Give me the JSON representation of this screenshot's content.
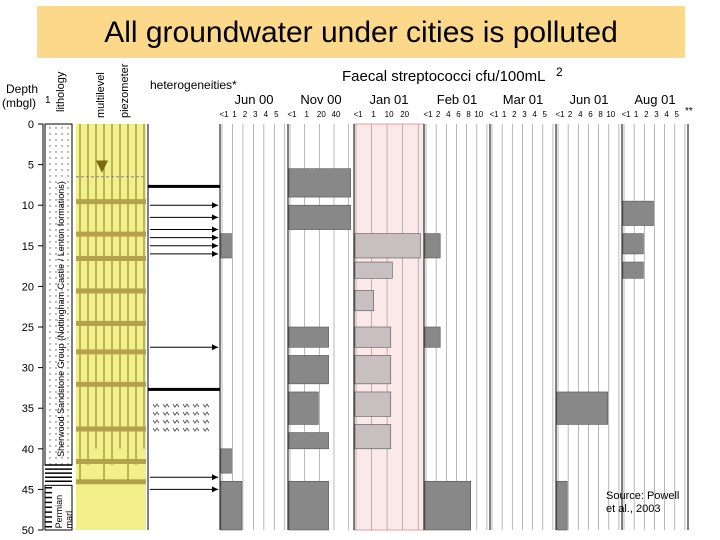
{
  "title": "All groundwater under cities is polluted",
  "source": [
    "Source: Powell",
    "et al., 2003"
  ],
  "figure": {
    "depth_label": [
      "Depth",
      "(mbgl)"
    ],
    "depth_sup": "1",
    "lithology_label": "lithology",
    "piezometer_label": [
      "multilevel",
      "piezometer"
    ],
    "heterogeneities_label": "heterogeneities*",
    "measure_label": "Faecal streptococci cfu/100mL",
    "measure_sup": "2",
    "double_star": "**",
    "sandstone_label": "Sherwood Sandstone Group (Nottingham Castle / Lenton formations)",
    "marl_label": "Permian marl",
    "depth_ticks": [
      "0",
      "5",
      "10",
      "15",
      "20",
      "25",
      "30",
      "35",
      "40",
      "45",
      "50"
    ]
  },
  "colors": {
    "title_bg": "#fcd98a",
    "piezometer_bg": "#f3ef8a",
    "bar": "#888888",
    "highlight": "#fbe9e9",
    "highlight_border": "#e8a0a0"
  },
  "chart_data": {
    "type": "bar",
    "orientation": "horizontal",
    "y_axis": "Depth (mbgl)",
    "ylim": [
      0,
      50
    ],
    "unit": "cfu/100mL",
    "panels": [
      {
        "name": "Jun 00",
        "ticks": [
          "<1",
          "1",
          "2",
          "3",
          "4",
          "5"
        ],
        "bars": [
          {
            "depth": [
              13.5,
              16.5
            ],
            "value": "<1"
          },
          {
            "depth": [
              40,
              43
            ],
            "value": "<1"
          },
          {
            "depth": [
              44,
              50
            ],
            "value": 1
          }
        ]
      },
      {
        "name": "Nov 00",
        "ticks": [
          "<1",
          "1",
          "20",
          "40"
        ],
        "bars": [
          {
            "depth": [
              5.5,
              9
            ],
            "value": 44
          },
          {
            "depth": [
              10,
              13
            ],
            "value": 44
          },
          {
            "depth": [
              25,
              27.5
            ],
            "value": 14
          },
          {
            "depth": [
              28.5,
              32
            ],
            "value": 14
          },
          {
            "depth": [
              33,
              37
            ],
            "value": 1
          },
          {
            "depth": [
              38,
              40
            ],
            "value": 14
          },
          {
            "depth": [
              44,
              50
            ],
            "value": 14
          }
        ]
      },
      {
        "name": "Jan 01",
        "highlight": true,
        "ticks": [
          "<1",
          "1",
          "10",
          "20"
        ],
        "bars": [
          {
            "depth": [
              13.5,
              16.5
            ],
            "value": 22
          },
          {
            "depth": [
              17,
              19
            ],
            "value": 4
          },
          {
            "depth": [
              20.5,
              23
            ],
            "value": "1"
          },
          {
            "depth": [
              25,
              27.5
            ],
            "value": 3
          },
          {
            "depth": [
              28.5,
              32
            ],
            "value": 3
          },
          {
            "depth": [
              33,
              36
            ],
            "value": 3
          },
          {
            "depth": [
              37,
              40
            ],
            "value": 3
          }
        ]
      },
      {
        "name": "Feb 01",
        "ticks": [
          "<1",
          "2",
          "4",
          "6",
          "8",
          "10"
        ],
        "bars": [
          {
            "depth": [
              13.5,
              16.5
            ],
            "value": 1
          },
          {
            "depth": [
              25,
              27.5
            ],
            "value": 1
          },
          {
            "depth": [
              44,
              50
            ],
            "value": 7
          }
        ]
      },
      {
        "name": "Mar 01",
        "ticks": [
          "<1",
          "1",
          "2",
          "3",
          "4",
          "5"
        ],
        "bars": []
      },
      {
        "name": "Jun 01",
        "ticks": [
          "<1",
          "2",
          "4",
          "6",
          "8",
          "10"
        ],
        "bars": [
          {
            "depth": [
              33,
              37
            ],
            "value": 8
          },
          {
            "depth": [
              44,
              50
            ],
            "value": "<1"
          }
        ]
      },
      {
        "name": "Aug 01",
        "ticks": [
          "<1",
          "1",
          "2",
          "3",
          "4",
          "5"
        ],
        "bars": [
          {
            "depth": [
              9.5,
              12.5
            ],
            "value": 2
          },
          {
            "depth": [
              13.5,
              16
            ],
            "value": 1
          },
          {
            "depth": [
              17,
              19
            ],
            "value": 1
          }
        ]
      }
    ]
  }
}
